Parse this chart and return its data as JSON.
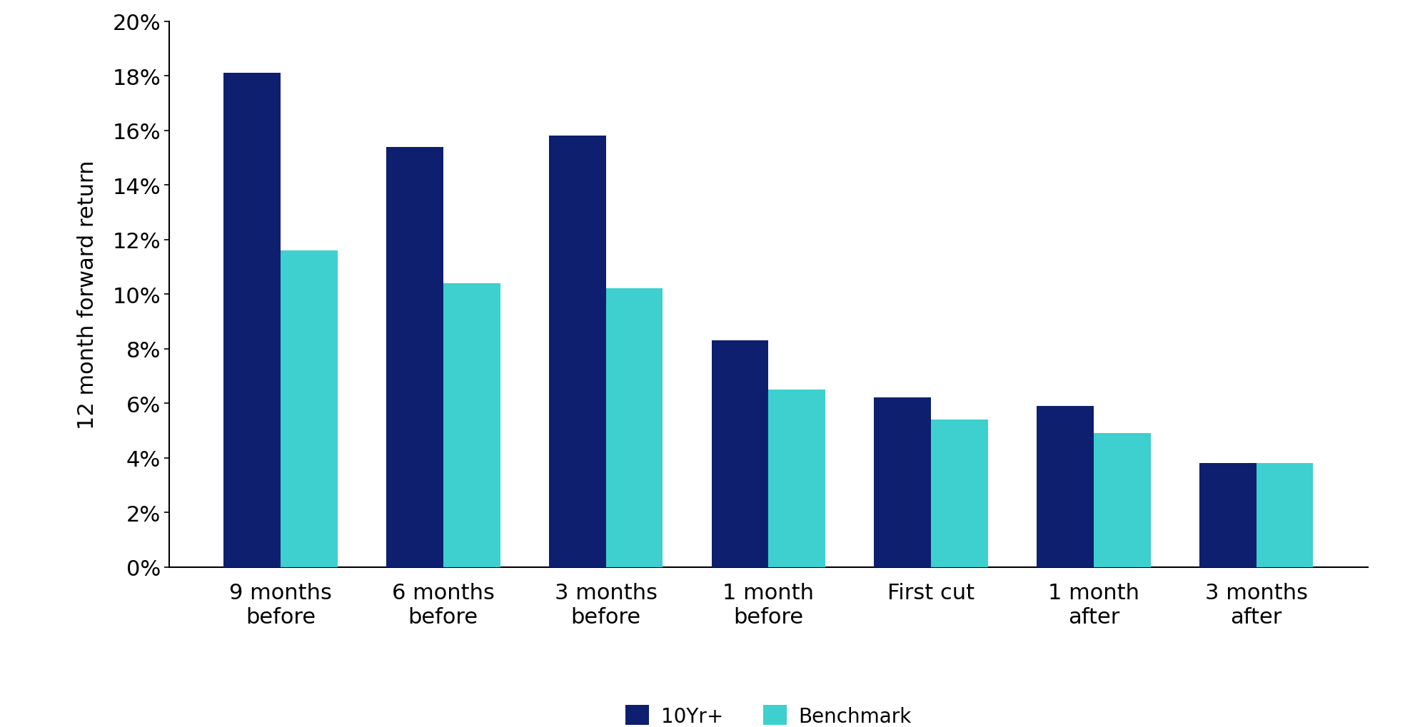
{
  "categories": [
    "9 months\nbefore",
    "6 months\nbefore",
    "3 months\nbefore",
    "1 month\nbefore",
    "First cut",
    "1 month\nafter",
    "3 months\nafter"
  ],
  "series": {
    "10Yr+": [
      0.181,
      0.154,
      0.158,
      0.083,
      0.062,
      0.059,
      0.038
    ],
    "Benchmark": [
      0.116,
      0.104,
      0.102,
      0.065,
      0.054,
      0.049,
      0.038
    ]
  },
  "colors": {
    "10Yr+": "#0d1f6e",
    "Benchmark": "#3ecfcf"
  },
  "ylabel": "12 month forward return",
  "ylim": [
    0,
    0.2
  ],
  "yticks": [
    0.0,
    0.02,
    0.04,
    0.06,
    0.08,
    0.1,
    0.12,
    0.14,
    0.16,
    0.18,
    0.2
  ],
  "bar_width": 0.35,
  "legend_labels": [
    "10Yr+",
    "Benchmark"
  ],
  "background_color": "#ffffff",
  "axis_fontsize": 22,
  "tick_fontsize": 22,
  "legend_fontsize": 20,
  "ylabel_fontsize": 22
}
